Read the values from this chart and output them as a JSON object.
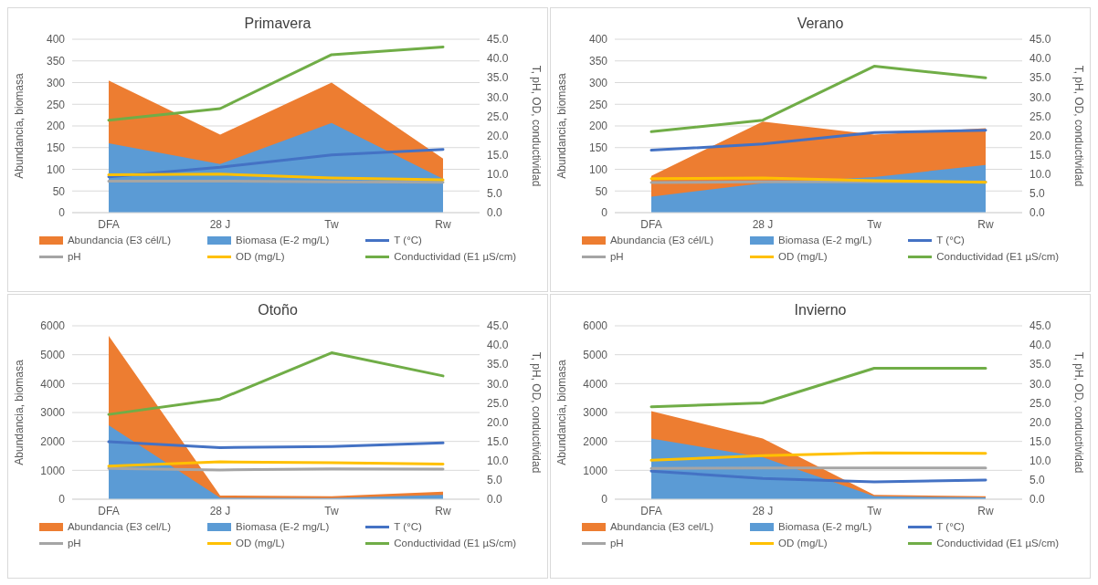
{
  "chart_data": [
    {
      "type": "area",
      "title": "Primavera",
      "ylabel": "Abundancia, biomasa",
      "y2label": "T, pH, OD, conductividad",
      "categories": [
        "DFA",
        "28 J",
        "Tw",
        "Rw"
      ],
      "ylim": [
        0,
        400
      ],
      "yticks": [
        0,
        50,
        100,
        150,
        200,
        250,
        300,
        350,
        400
      ],
      "y2lim": [
        0,
        45
      ],
      "y2ticks": [
        {
          "value": 0,
          "label": "0.0"
        },
        {
          "value": 5,
          "label": "5.0"
        },
        {
          "value": 10,
          "label": "10.0"
        },
        {
          "value": 15,
          "label": "15.0"
        },
        {
          "value": 20,
          "label": "20.0"
        },
        {
          "value": 25,
          "label": "25.0"
        },
        {
          "value": 30,
          "label": "30.0"
        },
        {
          "value": 35,
          "label": "35.0"
        },
        {
          "value": 40,
          "label": "40.0"
        },
        {
          "value": 45,
          "label": "45.0"
        }
      ],
      "grid": "y",
      "legend": "bottom",
      "series": [
        {
          "name": "Abundancia (E3 cél/L)",
          "color": "#ed7d31",
          "values": [
            305,
            180,
            300,
            125
          ]
        },
        {
          "name": "Biomasa (E-2 mg/L)",
          "color": "#5b9bd5",
          "values": [
            160,
            112,
            207,
            78
          ]
        },
        {
          "name": "T (°C)",
          "type": "line",
          "axis": "y2",
          "color": "#4472c4",
          "values": [
            9.3,
            11.8,
            15.0,
            16.4
          ]
        },
        {
          "name": "pH",
          "type": "line",
          "axis": "y2",
          "color": "#a5a5a5",
          "values": [
            8.2,
            8.2,
            8.0,
            7.9
          ]
        },
        {
          "name": "OD (mg/L)",
          "type": "line",
          "axis": "y2",
          "color": "#ffc000",
          "values": [
            9.8,
            10.0,
            9.0,
            8.5
          ]
        },
        {
          "name": "Conductividad (E1 µS/cm)",
          "type": "line",
          "axis": "y2",
          "color": "#70ad47",
          "values": [
            24,
            27,
            41,
            43
          ]
        }
      ]
    },
    {
      "type": "area",
      "title": "Verano",
      "ylabel": "Abundancia, biomasa",
      "y2label": "T, pH, OD, conductividad",
      "categories": [
        "DFA",
        "28 J",
        "Tw",
        "Rw"
      ],
      "ylim": [
        0,
        400
      ],
      "yticks": [
        0,
        50,
        100,
        150,
        200,
        250,
        300,
        350,
        400
      ],
      "y2lim": [
        0,
        45
      ],
      "y2ticks": [
        {
          "value": 0,
          "label": "0.0"
        },
        {
          "value": 5,
          "label": "5.0"
        },
        {
          "value": 10,
          "label": "10.0"
        },
        {
          "value": 15,
          "label": "15.0"
        },
        {
          "value": 20,
          "label": "20.0"
        },
        {
          "value": 25,
          "label": "25.0"
        },
        {
          "value": 30,
          "label": "30.0"
        },
        {
          "value": 35,
          "label": "35.0"
        },
        {
          "value": 40,
          "label": "40.0"
        },
        {
          "value": 45,
          "label": "45.0"
        }
      ],
      "grid": "y",
      "legend": "bottom",
      "series": [
        {
          "name": "Abundancia (E3 cél/L)",
          "color": "#ed7d31",
          "values": [
            85,
            210,
            180,
            195
          ]
        },
        {
          "name": "Biomasa (E-2 mg/L)",
          "color": "#5b9bd5",
          "values": [
            37,
            68,
            82,
            110
          ]
        },
        {
          "name": "T (°C)",
          "type": "line",
          "axis": "y2",
          "color": "#4472c4",
          "values": [
            16.2,
            17.8,
            20.8,
            21.4
          ]
        },
        {
          "name": "pH",
          "type": "line",
          "axis": "y2",
          "color": "#a5a5a5",
          "values": [
            7.8,
            8.0,
            8.0,
            8.0
          ]
        },
        {
          "name": "OD (mg/L)",
          "type": "line",
          "axis": "y2",
          "color": "#ffc000",
          "values": [
            8.8,
            9.0,
            8.3,
            7.9
          ]
        },
        {
          "name": "Conductividad (E1 µS/cm)",
          "type": "line",
          "axis": "y2",
          "color": "#70ad47",
          "values": [
            21,
            24,
            38,
            35
          ]
        }
      ]
    },
    {
      "type": "area",
      "title": "Otoño",
      "ylabel": "Abundancia, biomasa",
      "y2label": "T, pH, OD, conductividad",
      "categories": [
        "DFA",
        "28 J",
        "Tw",
        "Rw"
      ],
      "ylim": [
        0,
        6000
      ],
      "yticks": [
        0,
        1000,
        2000,
        3000,
        4000,
        5000,
        6000
      ],
      "y2lim": [
        0,
        45
      ],
      "y2ticks": [
        {
          "value": 0,
          "label": "0.0"
        },
        {
          "value": 5,
          "label": "5.0"
        },
        {
          "value": 10,
          "label": "10.0"
        },
        {
          "value": 15,
          "label": "15.0"
        },
        {
          "value": 20,
          "label": "20.0"
        },
        {
          "value": 25,
          "label": "25.0"
        },
        {
          "value": 30,
          "label": "30.0"
        },
        {
          "value": 35,
          "label": "35.0"
        },
        {
          "value": 40,
          "label": "40.0"
        },
        {
          "value": 45,
          "label": "45.0"
        }
      ],
      "grid": "y",
      "legend": "bottom",
      "series": [
        {
          "name": "Abundancia (E3 cel/L)",
          "color": "#ed7d31",
          "values": [
            5650,
            130,
            100,
            260
          ]
        },
        {
          "name": "Biomasa (E-2 mg/L)",
          "color": "#5b9bd5",
          "values": [
            2560,
            50,
            40,
            150
          ]
        },
        {
          "name": "T (°C)",
          "type": "line",
          "axis": "y2",
          "color": "#4472c4",
          "values": [
            14.9,
            13.4,
            13.7,
            14.6
          ]
        },
        {
          "name": "pH",
          "type": "line",
          "axis": "y2",
          "color": "#a5a5a5",
          "values": [
            8.0,
            7.6,
            7.9,
            7.8
          ]
        },
        {
          "name": "OD (mg/L)",
          "type": "line",
          "axis": "y2",
          "color": "#ffc000",
          "values": [
            8.6,
            9.7,
            9.5,
            9.1
          ]
        },
        {
          "name": "Conductividad (E1 µS/cm)",
          "type": "line",
          "axis": "y2",
          "color": "#70ad47",
          "values": [
            22,
            26,
            38,
            32
          ]
        }
      ]
    },
    {
      "type": "area",
      "title": "Invierno",
      "ylabel": "Abundancia, biomasa",
      "y2label": "T, pH, OD, conductividad",
      "categories": [
        "DFA",
        "28 J",
        "Tw",
        "Rw"
      ],
      "ylim": [
        0,
        6000
      ],
      "yticks": [
        0,
        1000,
        2000,
        3000,
        4000,
        5000,
        6000
      ],
      "y2lim": [
        0,
        45
      ],
      "y2ticks": [
        {
          "value": 0,
          "label": "0.0"
        },
        {
          "value": 5,
          "label": "5.0"
        },
        {
          "value": 10,
          "label": "10.0"
        },
        {
          "value": 15,
          "label": "15.0"
        },
        {
          "value": 20,
          "label": "20.0"
        },
        {
          "value": 25,
          "label": "25.0"
        },
        {
          "value": 30,
          "label": "30.0"
        },
        {
          "value": 35,
          "label": "35.0"
        },
        {
          "value": 40,
          "label": "40.0"
        },
        {
          "value": 45,
          "label": "45.0"
        }
      ],
      "grid": "y",
      "legend": "bottom",
      "series": [
        {
          "name": "Abundancia (E3 cel/L)",
          "color": "#ed7d31",
          "values": [
            3050,
            2100,
            150,
            100
          ]
        },
        {
          "name": "Biomasa (E-2 mg/L)",
          "color": "#5b9bd5",
          "values": [
            2100,
            1450,
            100,
            60
          ]
        },
        {
          "name": "T (°C)",
          "type": "line",
          "axis": "y2",
          "color": "#4472c4",
          "values": [
            7.3,
            5.4,
            4.5,
            5.0
          ]
        },
        {
          "name": "pH",
          "type": "line",
          "axis": "y2",
          "color": "#a5a5a5",
          "values": [
            8.0,
            8.1,
            8.1,
            8.1
          ]
        },
        {
          "name": "OD (mg/L)",
          "type": "line",
          "axis": "y2",
          "color": "#ffc000",
          "values": [
            10.1,
            11.3,
            12.0,
            11.9
          ]
        },
        {
          "name": "Conductividad (E1 µS/cm)",
          "type": "line",
          "axis": "y2",
          "color": "#70ad47",
          "values": [
            24,
            25,
            34,
            34
          ]
        }
      ]
    }
  ]
}
